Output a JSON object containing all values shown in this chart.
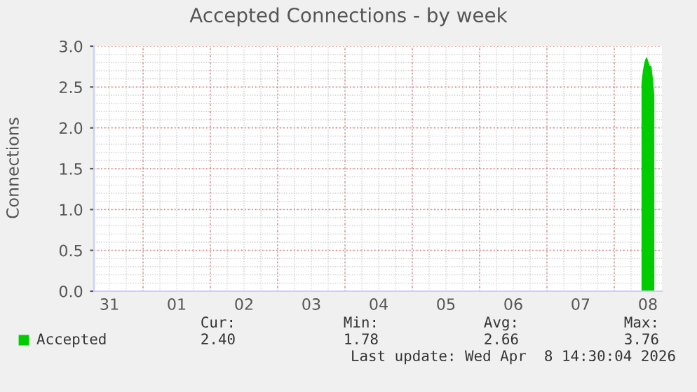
{
  "chart_data": {
    "type": "area",
    "title": "Accepted Connections - by week",
    "ylabel": "Connections",
    "x": [
      "2026-04-08T10:00",
      "2026-04-08T10:30",
      "2026-04-08T11:00",
      "2026-04-08T11:30",
      "2026-04-08T12:00",
      "2026-04-08T12:30",
      "2026-04-08T13:00",
      "2026-04-08T13:30",
      "2026-04-08T14:00"
    ],
    "series": [
      {
        "name": "Accepted",
        "color": "#00cc00",
        "values": [
          2.55,
          2.7,
          2.8,
          2.85,
          2.8,
          2.75,
          2.75,
          2.6,
          2.4
        ]
      }
    ],
    "xlim": [
      "2026-03-31T06:30",
      "2026-04-08T17:00"
    ],
    "xticks": [
      {
        "value": "2026-03-31T12:00",
        "label": "31"
      },
      {
        "value": "2026-04-01T12:00",
        "label": "01"
      },
      {
        "value": "2026-04-02T12:00",
        "label": "02"
      },
      {
        "value": "2026-04-03T12:00",
        "label": "03"
      },
      {
        "value": "2026-04-04T12:00",
        "label": "04"
      },
      {
        "value": "2026-04-05T12:00",
        "label": "05"
      },
      {
        "value": "2026-04-06T12:00",
        "label": "06"
      },
      {
        "value": "2026-04-07T12:00",
        "label": "07"
      },
      {
        "value": "2026-04-08T12:00",
        "label": "08"
      }
    ],
    "ylim": [
      0,
      3.0
    ],
    "yticks": [
      {
        "value": 0,
        "label": "0.0"
      },
      {
        "value": 0.5,
        "label": "0.5"
      },
      {
        "value": 1.0,
        "label": "1.0"
      },
      {
        "value": 1.5,
        "label": "1.5"
      },
      {
        "value": 2.0,
        "label": "2.0"
      },
      {
        "value": 2.5,
        "label": "2.5"
      },
      {
        "value": 3.0,
        "label": "3.0"
      }
    ],
    "grid": true,
    "legend": "bottom",
    "annotations": [
      "Cur:",
      "2.40",
      "Min:",
      "1.78",
      "Avg:",
      "2.66",
      "Max:",
      "3.76",
      "Last update: Wed Apr  8 14:30:04 2026"
    ]
  }
}
